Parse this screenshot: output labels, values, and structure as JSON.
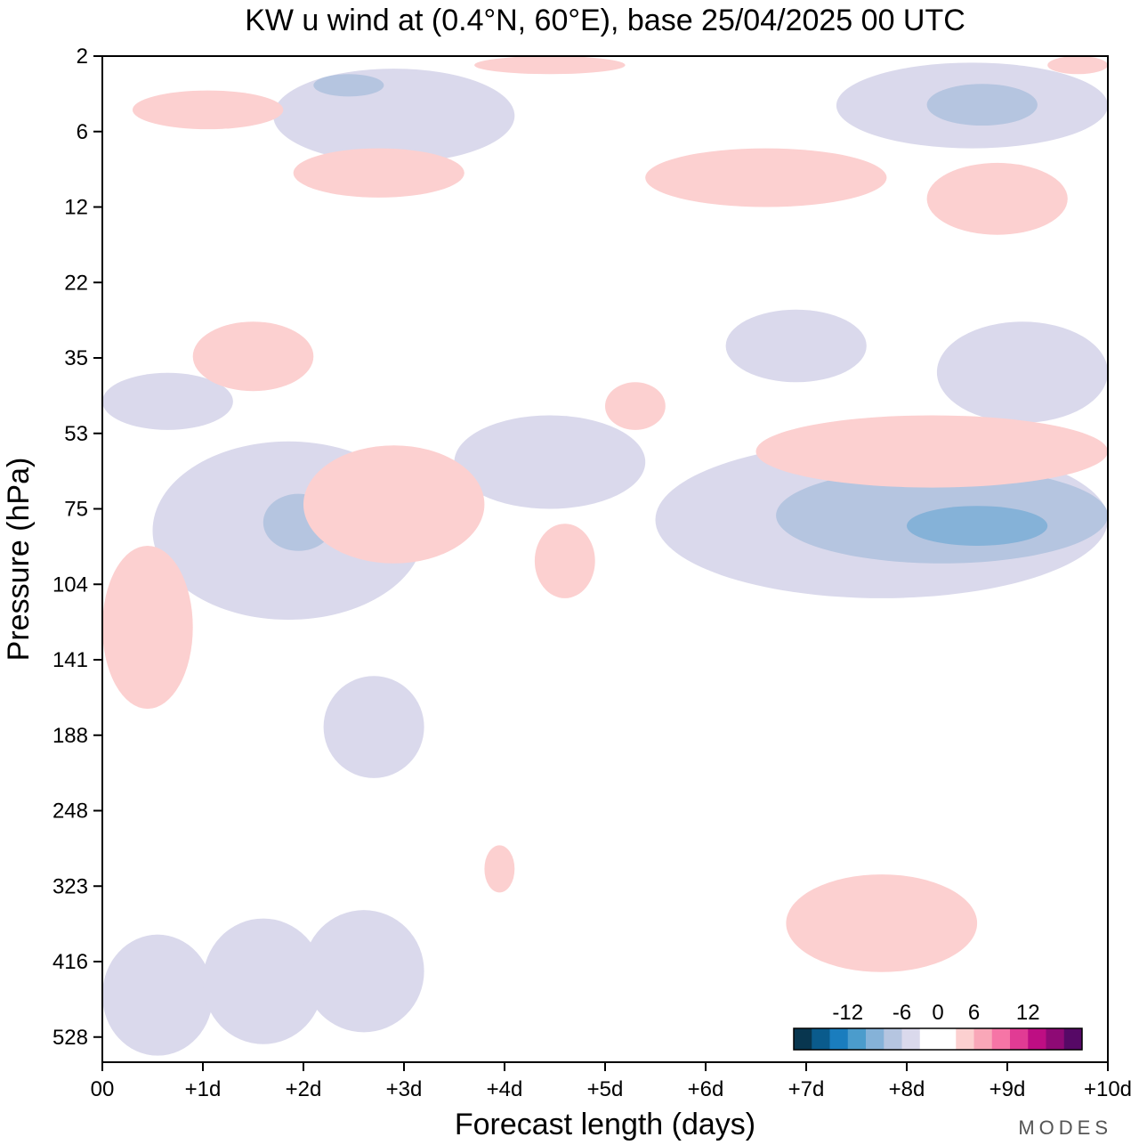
{
  "chart_data": {
    "type": "contour",
    "title": "KW u wind at (0.4°N, 60°E),  base 25/04/2025  00 UTC",
    "xlabel": "Forecast length (days)",
    "ylabel": "Pressure (hPa)",
    "x_ticks": [
      "00",
      "+1d",
      "+2d",
      "+3d",
      "+4d",
      "+5d",
      "+6d",
      "+7d",
      "+8d",
      "+9d",
      "+10d"
    ],
    "y_ticks": [
      "2",
      "6",
      "12",
      "22",
      "35",
      "53",
      "75",
      "104",
      "141",
      "188",
      "248",
      "323",
      "416",
      "528"
    ],
    "xlim": [
      0,
      10
    ],
    "y_axis": "pressure, decreasing upward",
    "colorbar": {
      "labels": [
        "-12",
        "-6",
        "0",
        "6",
        "12"
      ],
      "colors": [
        "#08364f",
        "#0a5b8c",
        "#1a7dbe",
        "#4b9ccc",
        "#85b2d8",
        "#b5c5e0",
        "#dad9ec",
        "#ffffff",
        "#ffffff",
        "#fcd0d0",
        "#f9a7b8",
        "#f675a6",
        "#e13b94",
        "#be0e83",
        "#8e0a75",
        "#560966"
      ]
    },
    "regions": [
      {
        "sign": "negative",
        "strength": 1,
        "x": [
          0.0,
          1.1
        ],
        "y": [
          380,
          560
        ]
      },
      {
        "sign": "negative",
        "strength": 1,
        "x": [
          1.0,
          2.2
        ],
        "y": [
          360,
          540
        ]
      },
      {
        "sign": "negative",
        "strength": 1,
        "x": [
          2.0,
          3.2
        ],
        "y": [
          350,
          520
        ]
      },
      {
        "sign": "negative",
        "strength": 1,
        "x": [
          2.2,
          3.2
        ],
        "y": [
          150,
          220
        ]
      },
      {
        "sign": "negative",
        "strength": 1,
        "x": [
          0.5,
          3.2
        ],
        "y": [
          55,
          120
        ]
      },
      {
        "sign": "negative",
        "strength": 2,
        "x": [
          1.6,
          2.3
        ],
        "y": [
          70,
          90
        ]
      },
      {
        "sign": "negative",
        "strength": 1,
        "x": [
          3.5,
          5.4
        ],
        "y": [
          48,
          75
        ]
      },
      {
        "sign": "negative",
        "strength": 1,
        "x": [
          5.5,
          10.0
        ],
        "y": [
          55,
          110
        ]
      },
      {
        "sign": "negative",
        "strength": 2,
        "x": [
          6.7,
          10.0
        ],
        "y": [
          62,
          95
        ]
      },
      {
        "sign": "negative",
        "strength": 3,
        "x": [
          8.0,
          9.4
        ],
        "y": [
          74,
          88
        ]
      },
      {
        "sign": "negative",
        "strength": 1,
        "x": [
          8.3,
          10.0
        ],
        "y": [
          28,
          50
        ]
      },
      {
        "sign": "negative",
        "strength": 1,
        "x": [
          6.2,
          7.6
        ],
        "y": [
          26,
          40
        ]
      },
      {
        "sign": "negative",
        "strength": 1,
        "x": [
          0.0,
          1.3
        ],
        "y": [
          38,
          52
        ]
      },
      {
        "sign": "negative",
        "strength": 1,
        "x": [
          1.7,
          4.1
        ],
        "y": [
          2.4,
          8
        ]
      },
      {
        "sign": "negative",
        "strength": 2,
        "x": [
          2.1,
          2.8
        ],
        "y": [
          2.6,
          3.6
        ]
      },
      {
        "sign": "negative",
        "strength": 1,
        "x": [
          7.3,
          10.0
        ],
        "y": [
          2.2,
          7
        ]
      },
      {
        "sign": "negative",
        "strength": 2,
        "x": [
          8.2,
          9.3
        ],
        "y": [
          3,
          5.5
        ]
      },
      {
        "sign": "positive",
        "strength": 1,
        "x": [
          0.0,
          0.9
        ],
        "y": [
          88,
          170
        ]
      },
      {
        "sign": "positive",
        "strength": 1,
        "x": [
          2.0,
          3.8
        ],
        "y": [
          56,
          95
        ]
      },
      {
        "sign": "positive",
        "strength": 1,
        "x": [
          4.3,
          4.9
        ],
        "y": [
          80,
          110
        ]
      },
      {
        "sign": "positive",
        "strength": 1,
        "x": [
          6.5,
          10.0
        ],
        "y": [
          48,
          68
        ]
      },
      {
        "sign": "positive",
        "strength": 1,
        "x": [
          5.0,
          5.6
        ],
        "y": [
          40,
          52
        ]
      },
      {
        "sign": "positive",
        "strength": 1,
        "x": [
          0.9,
          2.1
        ],
        "y": [
          28,
          42
        ]
      },
      {
        "sign": "positive",
        "strength": 1,
        "x": [
          6.8,
          8.7
        ],
        "y": [
          310,
          430
        ]
      },
      {
        "sign": "positive",
        "strength": 1,
        "x": [
          3.8,
          4.1
        ],
        "y": [
          280,
          330
        ]
      },
      {
        "sign": "positive",
        "strength": 1,
        "x": [
          0.3,
          1.8
        ],
        "y": [
          3.3,
          5.8
        ]
      },
      {
        "sign": "positive",
        "strength": 1,
        "x": [
          1.9,
          3.6
        ],
        "y": [
          7,
          11
        ]
      },
      {
        "sign": "positive",
        "strength": 1,
        "x": [
          5.4,
          7.8
        ],
        "y": [
          7,
          12
        ]
      },
      {
        "sign": "positive",
        "strength": 1,
        "x": [
          8.2,
          9.6
        ],
        "y": [
          8,
          15
        ]
      },
      {
        "sign": "positive",
        "strength": 1,
        "x": [
          3.7,
          5.2
        ],
        "y": [
          2,
          2.6
        ]
      },
      {
        "sign": "positive",
        "strength": 1,
        "x": [
          9.4,
          10.0
        ],
        "y": [
          2,
          2.6
        ]
      }
    ]
  },
  "logo": {
    "text": "MODES"
  }
}
